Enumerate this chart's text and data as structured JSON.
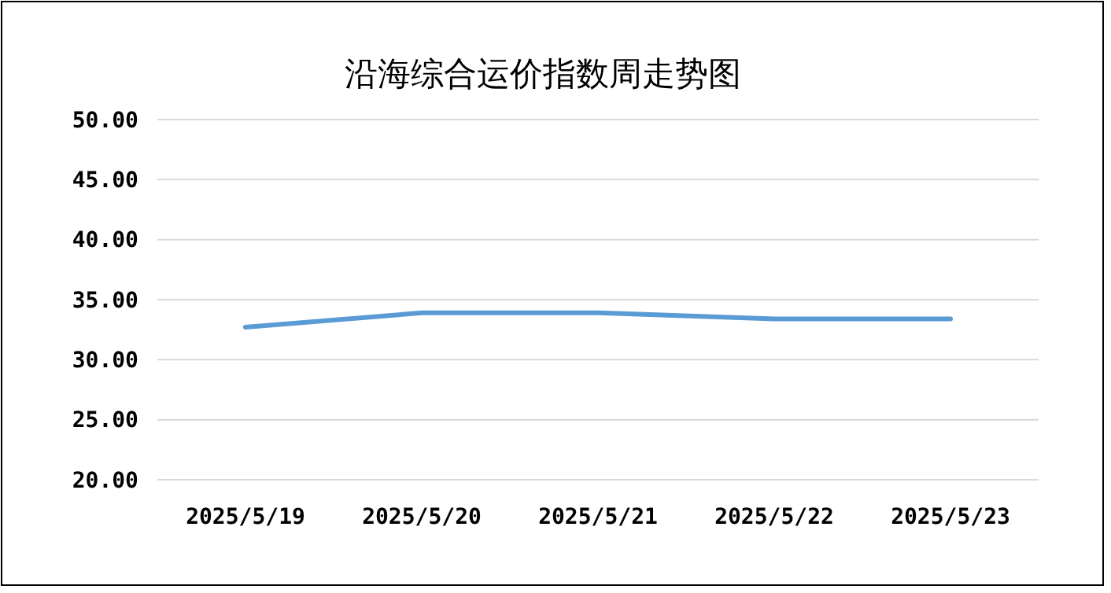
{
  "chart_data": {
    "type": "line",
    "title": "沿海综合运价指数周走势图",
    "categories": [
      "2025/5/19",
      "2025/5/20",
      "2025/5/21",
      "2025/5/22",
      "2025/5/23"
    ],
    "series": [
      {
        "color": "#5b9bd5",
        "values": [
          32.7,
          33.9,
          33.9,
          33.4,
          33.4
        ]
      }
    ],
    "ylim": [
      20,
      50
    ],
    "yticks": [
      {
        "value": 20,
        "label": "20.00"
      },
      {
        "value": 25,
        "label": "25.00"
      },
      {
        "value": 30,
        "label": "30.00"
      },
      {
        "value": 35,
        "label": "35.00"
      },
      {
        "value": 40,
        "label": "40.00"
      },
      {
        "value": 45,
        "label": "45.00"
      },
      {
        "value": 50,
        "label": "50.00"
      }
    ],
    "grid": "y",
    "marker": "none",
    "line_style": "solid"
  }
}
